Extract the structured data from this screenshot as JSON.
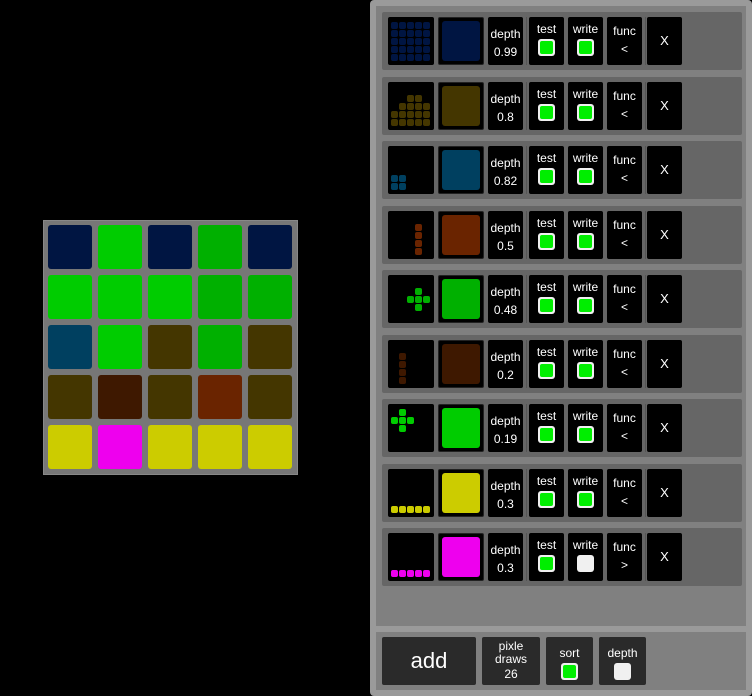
{
  "colors": {
    "navy": "#001542",
    "olive": "#443600",
    "teal": "#004060",
    "rust": "#6a2400",
    "green": "#00b000",
    "brown": "#3e1800",
    "lime": "#00cc00",
    "yellow": "#cccc00",
    "magenta": "#ee00ee"
  },
  "grid": [
    [
      "navy",
      "lime",
      "navy",
      "green",
      "navy"
    ],
    [
      "lime",
      "lime",
      "lime",
      "green",
      "green"
    ],
    [
      "teal",
      "lime",
      "olive",
      "green",
      "olive"
    ],
    [
      "olive",
      "brown",
      "olive",
      "rust",
      "olive"
    ],
    [
      "yellow",
      "magenta",
      "yellow",
      "yellow",
      "yellow"
    ]
  ],
  "labels": {
    "depth": "depth",
    "test": "test",
    "write": "write",
    "func": "func",
    "delete": "X"
  },
  "layers": [
    {
      "color": "navy",
      "depth": "0.99",
      "test": true,
      "write": true,
      "func": "<",
      "shape": [
        [
          0,
          0
        ],
        [
          0,
          1
        ],
        [
          0,
          2
        ],
        [
          0,
          3
        ],
        [
          0,
          4
        ],
        [
          1,
          0
        ],
        [
          1,
          1
        ],
        [
          1,
          2
        ],
        [
          1,
          3
        ],
        [
          1,
          4
        ],
        [
          2,
          0
        ],
        [
          2,
          1
        ],
        [
          2,
          2
        ],
        [
          2,
          3
        ],
        [
          2,
          4
        ],
        [
          3,
          0
        ],
        [
          3,
          1
        ],
        [
          3,
          2
        ],
        [
          3,
          3
        ],
        [
          3,
          4
        ],
        [
          4,
          0
        ],
        [
          4,
          1
        ],
        [
          4,
          2
        ],
        [
          4,
          3
        ],
        [
          4,
          4
        ]
      ]
    },
    {
      "color": "olive",
      "depth": "0.8",
      "test": true,
      "write": true,
      "func": "<",
      "shape": [
        [
          1,
          2
        ],
        [
          1,
          3
        ],
        [
          2,
          1
        ],
        [
          2,
          2
        ],
        [
          2,
          3
        ],
        [
          2,
          4
        ],
        [
          3,
          0
        ],
        [
          3,
          1
        ],
        [
          3,
          2
        ],
        [
          3,
          3
        ],
        [
          3,
          4
        ],
        [
          4,
          0
        ],
        [
          4,
          1
        ],
        [
          4,
          2
        ],
        [
          4,
          3
        ],
        [
          4,
          4
        ]
      ]
    },
    {
      "color": "teal",
      "depth": "0.82",
      "test": true,
      "write": true,
      "func": "<",
      "shape": [
        [
          3,
          0
        ],
        [
          3,
          1
        ],
        [
          4,
          0
        ],
        [
          4,
          1
        ]
      ]
    },
    {
      "color": "rust",
      "depth": "0.5",
      "test": true,
      "write": true,
      "func": "<",
      "shape": [
        [
          1,
          3
        ],
        [
          2,
          3
        ],
        [
          3,
          3
        ],
        [
          4,
          3
        ]
      ]
    },
    {
      "color": "green",
      "depth": "0.48",
      "test": true,
      "write": true,
      "func": "<",
      "shape": [
        [
          1,
          3
        ],
        [
          2,
          2
        ],
        [
          2,
          3
        ],
        [
          2,
          4
        ],
        [
          3,
          3
        ]
      ]
    },
    {
      "color": "brown",
      "depth": "0.2",
      "test": true,
      "write": true,
      "func": "<",
      "shape": [
        [
          1,
          1
        ],
        [
          2,
          1
        ],
        [
          3,
          1
        ],
        [
          4,
          1
        ]
      ]
    },
    {
      "color": "lime",
      "depth": "0.19",
      "test": true,
      "write": true,
      "func": "<",
      "shape": [
        [
          0,
          1
        ],
        [
          1,
          0
        ],
        [
          1,
          1
        ],
        [
          1,
          2
        ],
        [
          2,
          1
        ]
      ]
    },
    {
      "color": "yellow",
      "depth": "0.3",
      "test": true,
      "write": true,
      "func": "<",
      "shape": [
        [
          4,
          0
        ],
        [
          4,
          1
        ],
        [
          4,
          2
        ],
        [
          4,
          3
        ],
        [
          4,
          4
        ]
      ]
    },
    {
      "color": "magenta",
      "depth": "0.3",
      "test": true,
      "write": false,
      "func": ">",
      "shape": [
        [
          4,
          0
        ],
        [
          4,
          1
        ],
        [
          4,
          2
        ],
        [
          4,
          3
        ],
        [
          4,
          4
        ]
      ]
    }
  ],
  "footer": {
    "add": "add",
    "pixle_draws_label1": "pixle",
    "pixle_draws_label2": "draws",
    "pixle_draws": "26",
    "sort": "sort",
    "sort_on": true,
    "depth": "depth",
    "depth_on": false
  }
}
